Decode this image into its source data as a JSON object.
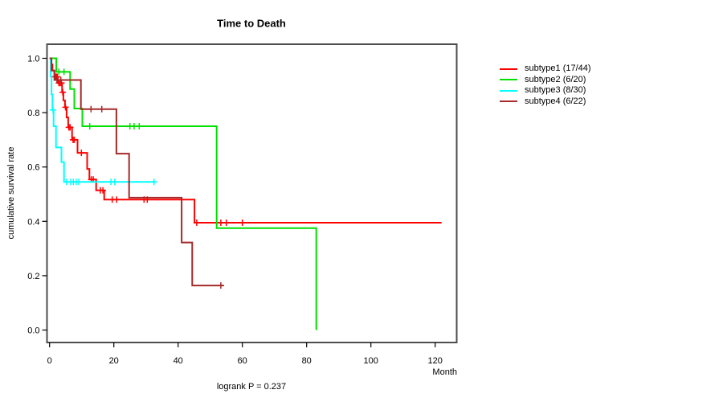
{
  "title": "Time to Death",
  "footer": "logrank P = 0.237",
  "axes": {
    "x_label": "Month",
    "x_tick_labels": [
      "0",
      "20",
      "40",
      "60",
      "80",
      "100",
      "120"
    ],
    "y_label": "cumulative survival rate",
    "y_tick_labels": [
      "0.0",
      "0.2",
      "0.4",
      "0.6",
      "0.8",
      "1.0"
    ]
  },
  "legend": {
    "items": [
      {
        "label": "subtype1 (17/44)",
        "color": "#ff0000"
      },
      {
        "label": "subtype2 (6/20)",
        "color": "#00e000"
      },
      {
        "label": "subtype3 (8/30)",
        "color": "#00ffff"
      },
      {
        "label": "subtype4 (6/22)",
        "color": "#a52a2a"
      }
    ]
  },
  "chart_data": {
    "type": "line",
    "variant": "kaplan-meier-step",
    "title": "Time to Death",
    "xlabel": "Month",
    "ylabel": "cumulative survival rate",
    "annotation": "logrank P = 0.237",
    "xlim": [
      0,
      127
    ],
    "ylim": [
      0.0,
      1.0
    ],
    "x_ticks": [
      0,
      20,
      40,
      60,
      80,
      100,
      120
    ],
    "y_ticks": [
      0.0,
      0.2,
      0.4,
      0.6,
      0.8,
      1.0
    ],
    "grid": false,
    "legend_position": "right",
    "series": [
      {
        "name": "subtype1 (17/44)",
        "color": "#ff0000",
        "steps": [
          [
            0,
            1.0
          ],
          [
            0.5,
            0.977
          ],
          [
            0.9,
            0.955
          ],
          [
            1.5,
            0.932
          ],
          [
            2.6,
            0.909
          ],
          [
            3.9,
            0.875
          ],
          [
            4.3,
            0.845
          ],
          [
            4.8,
            0.82
          ],
          [
            5.3,
            0.782
          ],
          [
            5.8,
            0.746
          ],
          [
            7.0,
            0.7
          ],
          [
            8.7,
            0.652
          ],
          [
            11.7,
            0.593
          ],
          [
            12.4,
            0.554
          ],
          [
            14.5,
            0.514
          ],
          [
            17.0,
            0.48
          ],
          [
            45.1,
            0.395
          ]
        ],
        "censors": [
          [
            1.8,
            0.932
          ],
          [
            2.1,
            0.932
          ],
          [
            2.4,
            0.932
          ],
          [
            2.9,
            0.909
          ],
          [
            3.3,
            0.909
          ],
          [
            3.7,
            0.909
          ],
          [
            4.1,
            0.875
          ],
          [
            4.95,
            0.82
          ],
          [
            6.0,
            0.746
          ],
          [
            6.4,
            0.746
          ],
          [
            7.3,
            0.7
          ],
          [
            7.7,
            0.7
          ],
          [
            9.9,
            0.652
          ],
          [
            13.0,
            0.554
          ],
          [
            13.6,
            0.554
          ],
          [
            15.8,
            0.514
          ],
          [
            16.6,
            0.514
          ],
          [
            19.5,
            0.48
          ],
          [
            20.9,
            0.48
          ],
          [
            29.4,
            0.48
          ],
          [
            30.4,
            0.48
          ],
          [
            45.8,
            0.395
          ],
          [
            53.3,
            0.395
          ],
          [
            55.0,
            0.395
          ],
          [
            60.0,
            0.395
          ]
        ],
        "end_month": 122
      },
      {
        "name": "subtype2 (6/20)",
        "color": "#00e000",
        "steps": [
          [
            0,
            1.0
          ],
          [
            2.1,
            0.95
          ],
          [
            6.4,
            0.887
          ],
          [
            7.7,
            0.815
          ],
          [
            10.2,
            0.75
          ],
          [
            52.0,
            0.375
          ],
          [
            83.0,
            0.0
          ]
        ],
        "censors": [
          [
            2.9,
            0.95
          ],
          [
            4.5,
            0.95
          ],
          [
            12.5,
            0.75
          ],
          [
            25.0,
            0.75
          ],
          [
            26.3,
            0.75
          ],
          [
            27.9,
            0.75
          ]
        ],
        "end_month": 83
      },
      {
        "name": "subtype3 (8/30)",
        "color": "#00ffff",
        "steps": [
          [
            0,
            1.0
          ],
          [
            0.35,
            0.933
          ],
          [
            0.6,
            0.867
          ],
          [
            0.9,
            0.81
          ],
          [
            1.25,
            0.75
          ],
          [
            2.0,
            0.672
          ],
          [
            3.7,
            0.618
          ],
          [
            4.5,
            0.545
          ]
        ],
        "censors": [
          [
            1.05,
            0.81
          ],
          [
            5.3,
            0.545
          ],
          [
            6.6,
            0.545
          ],
          [
            7.4,
            0.545
          ],
          [
            8.3,
            0.545
          ],
          [
            9.1,
            0.545
          ],
          [
            19.1,
            0.545
          ],
          [
            20.3,
            0.545
          ],
          [
            32.5,
            0.545
          ]
        ],
        "end_month": 33
      },
      {
        "name": "subtype4 (6/22)",
        "color": "#a52a2a",
        "steps": [
          [
            0,
            1.0
          ],
          [
            0.6,
            0.955
          ],
          [
            1.5,
            0.92
          ],
          [
            9.75,
            0.813
          ],
          [
            20.8,
            0.649
          ],
          [
            24.75,
            0.487
          ],
          [
            41.1,
            0.322
          ],
          [
            44.4,
            0.164
          ]
        ],
        "censors": [
          [
            2.3,
            0.92
          ],
          [
            3.5,
            0.92
          ],
          [
            12.9,
            0.813
          ],
          [
            16.25,
            0.813
          ],
          [
            53.3,
            0.164
          ]
        ],
        "end_month": 54.2
      }
    ]
  }
}
